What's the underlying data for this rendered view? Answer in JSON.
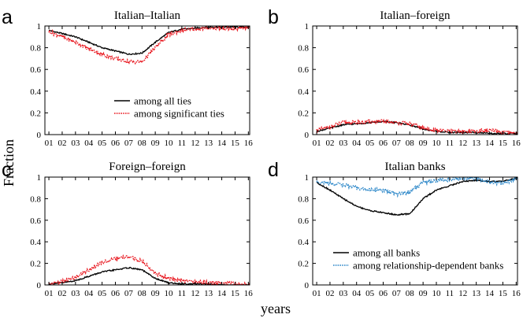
{
  "figure": {
    "ylabel": "Fraction",
    "xlabel": "years",
    "colors": {
      "all": "#000000",
      "significant": "#e8141c",
      "relationship": "#2a86c8"
    }
  },
  "chart_data": [
    {
      "type": "line",
      "letter": "a",
      "title": "Italian–Italian",
      "x_ticks": [
        "01",
        "02",
        "03",
        "04",
        "05",
        "06",
        "07",
        "08",
        "09",
        "10",
        "11",
        "12",
        "13",
        "14",
        "15",
        "16"
      ],
      "y_ticks": [
        "0",
        "0.2",
        "0.4",
        "0.6",
        "0.8",
        "1"
      ],
      "ylim": [
        0,
        1
      ],
      "legend": "bottom-center",
      "series": [
        {
          "name": "among all ties",
          "color": "#000000",
          "style": "solid",
          "x": [
            2001,
            2002,
            2003,
            2004,
            2005,
            2006,
            2007,
            2008,
            2009,
            2010,
            2011,
            2012,
            2013,
            2014,
            2015,
            2016
          ],
          "values": [
            0.96,
            0.93,
            0.9,
            0.85,
            0.8,
            0.77,
            0.74,
            0.75,
            0.85,
            0.94,
            0.97,
            0.98,
            0.99,
            0.99,
            0.99,
            0.99
          ]
        },
        {
          "name": "among significant ties",
          "color": "#e8141c",
          "style": "dotted",
          "x": [
            2001,
            2002,
            2003,
            2004,
            2005,
            2006,
            2007,
            2008,
            2009,
            2010,
            2011,
            2012,
            2013,
            2014,
            2015,
            2016
          ],
          "values": [
            0.95,
            0.9,
            0.85,
            0.79,
            0.74,
            0.7,
            0.67,
            0.67,
            0.8,
            0.92,
            0.96,
            0.97,
            0.98,
            0.98,
            0.97,
            0.99
          ]
        }
      ]
    },
    {
      "type": "line",
      "letter": "b",
      "title": "Italian–foreign",
      "x_ticks": [
        "01",
        "02",
        "03",
        "04",
        "05",
        "06",
        "07",
        "08",
        "09",
        "10",
        "11",
        "12",
        "13",
        "14",
        "15",
        "16"
      ],
      "y_ticks": [
        "0",
        "0.2",
        "0.4",
        "0.6",
        "0.8",
        "1"
      ],
      "ylim": [
        0,
        1
      ],
      "series": [
        {
          "name": "among all ties",
          "color": "#000000",
          "style": "solid",
          "x": [
            2001,
            2002,
            2003,
            2004,
            2005,
            2006,
            2007,
            2008,
            2009,
            2010,
            2011,
            2012,
            2013,
            2014,
            2015,
            2016
          ],
          "values": [
            0.03,
            0.06,
            0.09,
            0.1,
            0.11,
            0.12,
            0.11,
            0.09,
            0.05,
            0.03,
            0.02,
            0.02,
            0.02,
            0.01,
            0.01,
            0.01
          ]
        },
        {
          "name": "among significant ties",
          "color": "#e8141c",
          "style": "dotted",
          "x": [
            2001,
            2002,
            2003,
            2004,
            2005,
            2006,
            2007,
            2008,
            2009,
            2010,
            2011,
            2012,
            2013,
            2014,
            2015,
            2016
          ],
          "values": [
            0.04,
            0.07,
            0.11,
            0.11,
            0.12,
            0.12,
            0.11,
            0.1,
            0.06,
            0.04,
            0.03,
            0.03,
            0.03,
            0.04,
            0.02,
            0.01
          ]
        }
      ]
    },
    {
      "type": "line",
      "letter": "c",
      "title": "Foreign–foreign",
      "x_ticks": [
        "01",
        "02",
        "03",
        "04",
        "05",
        "06",
        "07",
        "08",
        "09",
        "10",
        "11",
        "12",
        "13",
        "14",
        "15",
        "16"
      ],
      "y_ticks": [
        "0",
        "0.2",
        "0.4",
        "0.6",
        "0.8",
        "1"
      ],
      "ylim": [
        0,
        1
      ],
      "series": [
        {
          "name": "among all ties",
          "color": "#000000",
          "style": "solid",
          "x": [
            2001,
            2002,
            2003,
            2004,
            2005,
            2006,
            2007,
            2008,
            2009,
            2010,
            2011,
            2012,
            2013,
            2014,
            2015,
            2016
          ],
          "values": [
            0.01,
            0.02,
            0.04,
            0.08,
            0.12,
            0.14,
            0.16,
            0.14,
            0.06,
            0.02,
            0.01,
            0.01,
            0.01,
            0.0,
            0.0,
            0.0
          ]
        },
        {
          "name": "among significant ties",
          "color": "#e8141c",
          "style": "dotted",
          "x": [
            2001,
            2002,
            2003,
            2004,
            2005,
            2006,
            2007,
            2008,
            2009,
            2010,
            2011,
            2012,
            2013,
            2014,
            2015,
            2016
          ],
          "values": [
            0.01,
            0.03,
            0.07,
            0.14,
            0.21,
            0.24,
            0.26,
            0.22,
            0.11,
            0.06,
            0.04,
            0.03,
            0.02,
            0.02,
            0.01,
            0.0
          ]
        }
      ]
    },
    {
      "type": "line",
      "letter": "d",
      "title": "Italian banks",
      "x_ticks": [
        "01",
        "02",
        "03",
        "04",
        "05",
        "06",
        "07",
        "08",
        "09",
        "10",
        "11",
        "12",
        "13",
        "14",
        "15",
        "16"
      ],
      "y_ticks": [
        "0",
        "0.2",
        "0.4",
        "0.6",
        "0.8",
        "1"
      ],
      "ylim": [
        0,
        1
      ],
      "legend": "bottom-center",
      "series": [
        {
          "name": "among all banks",
          "color": "#000000",
          "style": "solid",
          "x": [
            2001,
            2002,
            2003,
            2004,
            2005,
            2006,
            2007,
            2008,
            2009,
            2010,
            2011,
            2012,
            2013,
            2014,
            2015,
            2016
          ],
          "values": [
            0.95,
            0.88,
            0.8,
            0.73,
            0.69,
            0.67,
            0.65,
            0.66,
            0.8,
            0.88,
            0.92,
            0.96,
            0.97,
            0.96,
            0.96,
            0.99
          ]
        },
        {
          "name": "among relationship-dependent banks",
          "color": "#2a86c8",
          "style": "dotted",
          "x": [
            2001,
            2002,
            2003,
            2004,
            2005,
            2006,
            2007,
            2008,
            2009,
            2010,
            2011,
            2012,
            2013,
            2014,
            2015,
            2016
          ],
          "values": [
            0.96,
            0.94,
            0.93,
            0.9,
            0.88,
            0.88,
            0.84,
            0.86,
            0.95,
            0.97,
            0.98,
            0.99,
            0.99,
            0.95,
            0.94,
            0.99
          ]
        }
      ]
    }
  ]
}
